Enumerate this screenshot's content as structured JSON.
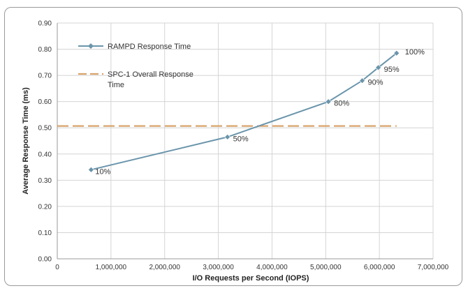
{
  "chart_data": {
    "type": "line",
    "title": "",
    "xlabel": "I/O Requests per Second (IOPS)",
    "ylabel": "Average Response Time (ms)",
    "xlim": [
      0,
      7000000
    ],
    "ylim": [
      0,
      0.9
    ],
    "x_ticks": [
      0,
      1000000,
      2000000,
      3000000,
      4000000,
      5000000,
      6000000,
      7000000
    ],
    "x_tick_labels": [
      "0",
      "1,000,000",
      "2,000,000",
      "3,000,000",
      "4,000,000",
      "5,000,000",
      "6,000,000",
      "7,000,000"
    ],
    "y_ticks": [
      0,
      0.1,
      0.2,
      0.3,
      0.4,
      0.5,
      0.6,
      0.7,
      0.8,
      0.9
    ],
    "y_tick_labels": [
      "0.00",
      "0.10",
      "0.20",
      "0.30",
      "0.40",
      "0.50",
      "0.60",
      "0.70",
      "0.80",
      "0.90"
    ],
    "grid": true,
    "legend_position": "top-left",
    "series": [
      {
        "name": "RAMPD Response Time",
        "color": "#6a95ab",
        "marker": "diamond",
        "x": [
          630000,
          3170000,
          5050000,
          5680000,
          5980000,
          6320000
        ],
        "y": [
          0.34,
          0.465,
          0.6,
          0.68,
          0.73,
          0.785
        ],
        "labels": [
          "10%",
          "50%",
          "80%",
          "90%",
          "95%",
          "100%"
        ]
      },
      {
        "name": "SPC-1 Overall Response Time",
        "color": "#d9a36a",
        "style": "dashed",
        "x": [
          0,
          6320000
        ],
        "y": [
          0.507,
          0.507
        ]
      }
    ]
  }
}
